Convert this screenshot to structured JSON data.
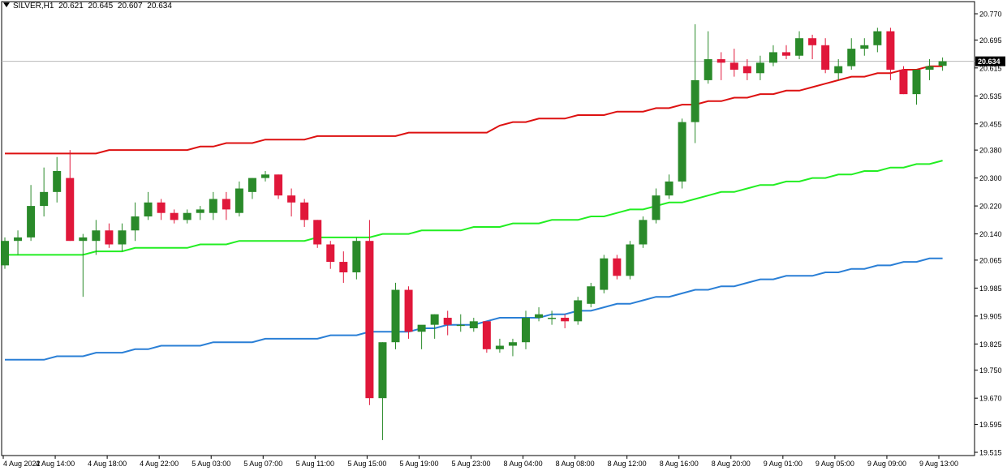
{
  "header": {
    "symbol": "SILVER,H1",
    "open": "20.621",
    "high": "20.645",
    "low": "20.607",
    "close": "20.634"
  },
  "colors": {
    "background": "#ffffff",
    "bull": "#2a8a2a",
    "bear": "#e0173a",
    "ma_red": "#dd1111",
    "ma_green": "#22ee22",
    "ma_blue": "#2a7fd6",
    "price_line": "#b8b8b8",
    "axis": "#000000"
  },
  "chart_data": {
    "type": "candlestick",
    "ylim": [
      19.515,
      20.805
    ],
    "y_ticks": [
      "20.770",
      "20.695",
      "20.615",
      "20.535",
      "20.455",
      "20.380",
      "20.300",
      "20.220",
      "20.140",
      "20.065",
      "19.985",
      "19.905",
      "19.825",
      "19.750",
      "19.670",
      "19.595",
      "19.515"
    ],
    "current_price": "20.634",
    "x_labels": [
      "4 Aug 2022",
      "4 Aug 14:00",
      "4 Aug 18:00",
      "4 Aug 22:00",
      "5 Aug 03:00",
      "5 Aug 07:00",
      "5 Aug 11:00",
      "5 Aug 15:00",
      "5 Aug 19:00",
      "5 Aug 23:00",
      "8 Aug 04:00",
      "8 Aug 08:00",
      "8 Aug 12:00",
      "8 Aug 16:00",
      "8 Aug 20:00",
      "9 Aug 01:00",
      "9 Aug 05:00",
      "9 Aug 09:00",
      "9 Aug 13:00"
    ],
    "candles": [
      [
        20.05,
        20.13,
        20.04,
        20.12
      ],
      [
        20.12,
        20.15,
        20.08,
        20.13
      ],
      [
        20.13,
        20.28,
        20.12,
        20.22
      ],
      [
        20.22,
        20.33,
        20.19,
        20.26
      ],
      [
        20.26,
        20.36,
        20.23,
        20.32
      ],
      [
        20.3,
        20.38,
        20.12,
        20.12
      ],
      [
        20.12,
        20.14,
        19.96,
        20.13
      ],
      [
        20.12,
        20.18,
        20.08,
        20.15
      ],
      [
        20.15,
        20.17,
        20.1,
        20.11
      ],
      [
        20.11,
        20.17,
        20.09,
        20.15
      ],
      [
        20.15,
        20.23,
        20.12,
        20.19
      ],
      [
        20.19,
        20.26,
        20.18,
        20.23
      ],
      [
        20.23,
        20.24,
        20.18,
        20.2
      ],
      [
        20.2,
        20.21,
        20.17,
        20.18
      ],
      [
        20.18,
        20.21,
        20.17,
        20.2
      ],
      [
        20.2,
        20.22,
        20.18,
        20.21
      ],
      [
        20.2,
        20.26,
        20.18,
        20.24
      ],
      [
        20.24,
        20.26,
        20.18,
        20.21
      ],
      [
        20.2,
        20.29,
        20.19,
        20.27
      ],
      [
        20.26,
        20.3,
        20.24,
        20.3
      ],
      [
        20.3,
        20.32,
        20.29,
        20.31
      ],
      [
        20.31,
        20.31,
        20.24,
        20.25
      ],
      [
        20.25,
        20.27,
        20.19,
        20.23
      ],
      [
        20.23,
        20.24,
        20.16,
        20.18
      ],
      [
        20.18,
        20.18,
        20.1,
        20.11
      ],
      [
        20.11,
        20.12,
        20.04,
        20.06
      ],
      [
        20.06,
        20.09,
        20.0,
        20.03
      ],
      [
        20.03,
        20.13,
        20.01,
        20.12
      ],
      [
        20.12,
        20.18,
        19.65,
        19.67
      ],
      [
        19.67,
        19.83,
        19.55,
        19.83
      ],
      [
        19.83,
        20.0,
        19.81,
        19.98
      ],
      [
        19.98,
        19.99,
        19.84,
        19.86
      ],
      [
        19.86,
        19.87,
        19.81,
        19.88
      ],
      [
        19.88,
        19.91,
        19.84,
        19.91
      ],
      [
        19.9,
        19.92,
        19.85,
        19.88
      ],
      [
        19.88,
        19.91,
        19.86,
        19.88
      ],
      [
        19.87,
        19.9,
        19.86,
        19.89
      ],
      [
        19.89,
        19.89,
        19.8,
        19.81
      ],
      [
        19.81,
        19.84,
        19.8,
        19.82
      ],
      [
        19.82,
        19.84,
        19.79,
        19.83
      ],
      [
        19.83,
        19.92,
        19.81,
        19.9
      ],
      [
        19.9,
        19.93,
        19.89,
        19.91
      ],
      [
        19.9,
        19.92,
        19.88,
        19.9
      ],
      [
        19.9,
        19.91,
        19.87,
        19.89
      ],
      [
        19.89,
        19.96,
        19.88,
        19.95
      ],
      [
        19.94,
        20.0,
        19.93,
        19.99
      ],
      [
        19.98,
        20.08,
        19.97,
        20.07
      ],
      [
        20.07,
        20.08,
        20.01,
        20.02
      ],
      [
        20.02,
        20.12,
        20.01,
        20.11
      ],
      [
        20.11,
        20.19,
        20.1,
        20.18
      ],
      [
        20.18,
        20.27,
        20.17,
        20.25
      ],
      [
        20.25,
        20.31,
        20.24,
        20.29
      ],
      [
        20.29,
        20.47,
        20.27,
        20.46
      ],
      [
        20.46,
        20.74,
        20.4,
        20.58
      ],
      [
        20.58,
        20.72,
        20.57,
        20.64
      ],
      [
        20.64,
        20.66,
        20.58,
        20.63
      ],
      [
        20.63,
        20.67,
        20.59,
        20.61
      ],
      [
        20.62,
        20.64,
        20.58,
        20.6
      ],
      [
        20.6,
        20.65,
        20.58,
        20.63
      ],
      [
        20.63,
        20.68,
        20.62,
        20.66
      ],
      [
        20.66,
        20.68,
        20.64,
        20.65
      ],
      [
        20.65,
        20.72,
        20.64,
        20.7
      ],
      [
        20.7,
        20.71,
        20.64,
        20.68
      ],
      [
        20.68,
        20.7,
        20.6,
        20.61
      ],
      [
        20.6,
        20.64,
        20.58,
        20.62
      ],
      [
        20.62,
        20.7,
        20.61,
        20.67
      ],
      [
        20.67,
        20.7,
        20.65,
        20.68
      ],
      [
        20.68,
        20.73,
        20.66,
        20.72
      ],
      [
        20.72,
        20.73,
        20.58,
        20.61
      ],
      [
        20.61,
        20.62,
        20.54,
        20.54
      ],
      [
        20.54,
        20.61,
        20.51,
        20.61
      ],
      [
        20.61,
        20.64,
        20.58,
        20.62
      ],
      [
        20.621,
        20.645,
        20.607,
        20.634
      ]
    ],
    "series": [
      {
        "color": "#dd1111",
        "values": [
          20.37,
          20.37,
          20.37,
          20.37,
          20.37,
          20.37,
          20.37,
          20.37,
          20.38,
          20.38,
          20.38,
          20.38,
          20.38,
          20.38,
          20.38,
          20.39,
          20.39,
          20.4,
          20.4,
          20.4,
          20.41,
          20.41,
          20.41,
          20.41,
          20.42,
          20.42,
          20.42,
          20.42,
          20.42,
          20.42,
          20.42,
          20.43,
          20.43,
          20.43,
          20.43,
          20.43,
          20.43,
          20.43,
          20.45,
          20.46,
          20.46,
          20.47,
          20.47,
          20.47,
          20.48,
          20.48,
          20.48,
          20.49,
          20.49,
          20.49,
          20.5,
          20.5,
          20.51,
          20.51,
          20.52,
          20.52,
          20.53,
          20.53,
          20.54,
          20.54,
          20.55,
          20.55,
          20.56,
          20.57,
          20.58,
          20.59,
          20.59,
          20.6,
          20.6,
          20.61,
          20.61,
          20.62,
          20.62
        ]
      },
      {
        "color": "#22ee22",
        "values": [
          20.08,
          20.08,
          20.08,
          20.08,
          20.08,
          20.08,
          20.08,
          20.09,
          20.09,
          20.09,
          20.1,
          20.1,
          20.1,
          20.1,
          20.1,
          20.11,
          20.11,
          20.11,
          20.12,
          20.12,
          20.12,
          20.12,
          20.12,
          20.12,
          20.13,
          20.13,
          20.13,
          20.13,
          20.13,
          20.14,
          20.14,
          20.14,
          20.15,
          20.15,
          20.15,
          20.15,
          20.16,
          20.16,
          20.16,
          20.17,
          20.17,
          20.17,
          20.18,
          20.18,
          20.18,
          20.19,
          20.19,
          20.2,
          20.21,
          20.21,
          20.22,
          20.23,
          20.23,
          20.24,
          20.25,
          20.26,
          20.26,
          20.27,
          20.28,
          20.28,
          20.29,
          20.29,
          20.3,
          20.3,
          20.31,
          20.31,
          20.32,
          20.32,
          20.33,
          20.33,
          20.34,
          20.34,
          20.35
        ]
      },
      {
        "color": "#2a7fd6",
        "values": [
          19.78,
          19.78,
          19.78,
          19.78,
          19.79,
          19.79,
          19.79,
          19.8,
          19.8,
          19.8,
          19.81,
          19.81,
          19.82,
          19.82,
          19.82,
          19.82,
          19.83,
          19.83,
          19.83,
          19.83,
          19.84,
          19.84,
          19.84,
          19.84,
          19.84,
          19.85,
          19.85,
          19.85,
          19.86,
          19.86,
          19.86,
          19.86,
          19.87,
          19.87,
          19.88,
          19.88,
          19.88,
          19.89,
          19.9,
          19.9,
          19.9,
          19.9,
          19.91,
          19.91,
          19.92,
          19.92,
          19.93,
          19.94,
          19.94,
          19.95,
          19.96,
          19.96,
          19.97,
          19.98,
          19.98,
          19.99,
          19.99,
          20.0,
          20.01,
          20.01,
          20.02,
          20.02,
          20.02,
          20.03,
          20.03,
          20.04,
          20.04,
          20.05,
          20.05,
          20.06,
          20.06,
          20.07,
          20.07
        ]
      }
    ]
  }
}
